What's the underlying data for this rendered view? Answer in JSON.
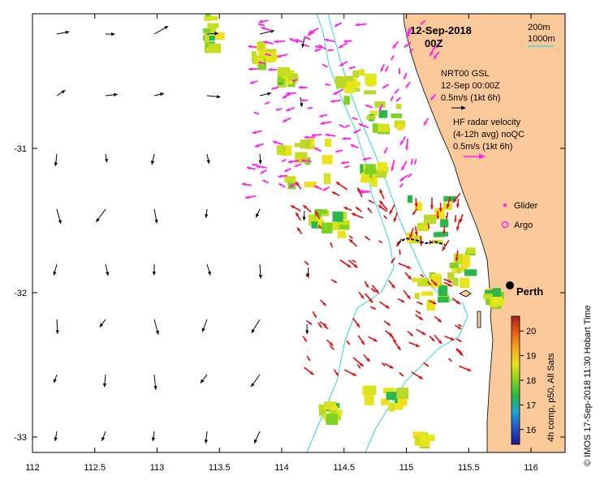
{
  "title": {
    "date": "12-Sep-2018",
    "time": "00Z"
  },
  "contour_legend": {
    "line1": "200m",
    "line2": "1000m",
    "color": "#33d6d6"
  },
  "model_legend": {
    "name": "NRT00 GSL",
    "time": "12-Sep 00:00Z",
    "scale": "0.5m/s (1kt 6h)"
  },
  "radar_legend": {
    "line1": "HF radar velocity",
    "line2": "(4-12h avg) noQC",
    "scale": "0.5m/s (1kt 6h)",
    "color": "#ff22ee"
  },
  "markers": {
    "glider": "Glider",
    "argo": "Argo",
    "glider_color": "#ff22ee",
    "argo_color": "#ff22ee"
  },
  "city": {
    "name": "Perth"
  },
  "colorbar": {
    "label": "4h comp, p50, All Sats",
    "ticks": [
      "16",
      "17",
      "18",
      "19",
      "20"
    ],
    "range": [
      15.4,
      20.6
    ]
  },
  "side_caption": "© IMOS 17-Sep-2018 11:30 Hobart Time",
  "axes": {
    "x_ticks": [
      "112",
      "112.5",
      "113",
      "113.5",
      "114",
      "114.5",
      "115",
      "115.5",
      "116"
    ],
    "y_ticks": [
      "-31",
      "-32",
      "-33"
    ],
    "x_range": [
      112,
      116.3
    ],
    "y_range": [
      -33.1,
      -30.1
    ]
  },
  "colors": {
    "land": "#fcc99b",
    "ocean": "#ffffff",
    "model_arrow": "#000000",
    "radar_arrow": "#ff22ee",
    "hf_arrow": "#dd1111"
  }
}
